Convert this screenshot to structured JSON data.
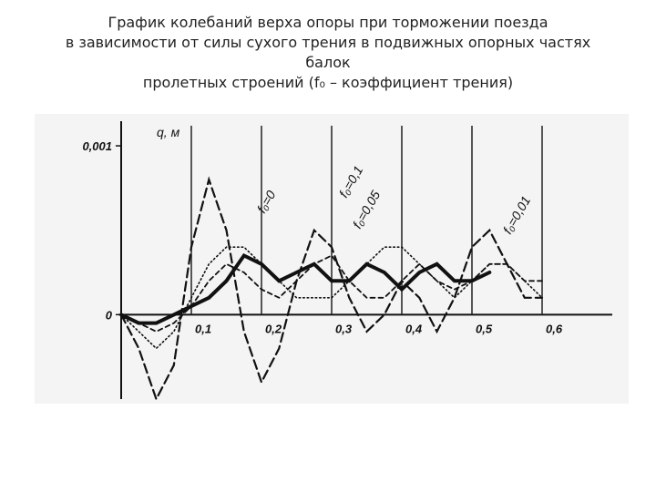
{
  "chart_data": {
    "type": "line",
    "title_lines": [
      "График колебаний верха опоры при торможении поезда",
      "в зависимости от силы сухого трения в подвижных опорных частях",
      "балок",
      "пролетных строений (f₀ – коэффициент трения)"
    ],
    "y_label": "q, м",
    "x": [
      0,
      0.025,
      0.05,
      0.075,
      0.1,
      0.125,
      0.15,
      0.175,
      0.2,
      0.225,
      0.25,
      0.275,
      0.3,
      0.325,
      0.35,
      0.375,
      0.4,
      0.425,
      0.45,
      0.475,
      0.5,
      0.525,
      0.55,
      0.575,
      0.6
    ],
    "series": [
      {
        "name": "f₀=0",
        "color": "#111111",
        "style": "dashed",
        "values": [
          0,
          -0.0002,
          -0.0005,
          -0.0003,
          0.0004,
          0.0008,
          0.0005,
          -0.0001,
          -0.0004,
          -0.0002,
          0.0002,
          0.0005,
          0.0004,
          0.0001,
          -0.0001,
          0,
          0.0002,
          0.0001,
          -0.0001,
          0.0001,
          0.0004,
          0.0005,
          0.0003,
          0.0001,
          0.0001
        ]
      },
      {
        "name": "f₀=0,1",
        "color": "#111111",
        "style": "short-dashed",
        "values": [
          0,
          -5e-05,
          -0.0001,
          -5e-05,
          5e-05,
          0.0002,
          0.0003,
          0.00025,
          0.00015,
          0.0001,
          0.0002,
          0.0003,
          0.00035,
          0.0002,
          0.0001,
          0.0001,
          0.0002,
          0.0003,
          0.0002,
          0.00015,
          0.0002,
          0.0003,
          0.0003,
          0.0002,
          0.0002
        ]
      },
      {
        "name": "f₀=0,05",
        "color": "#111111",
        "style": "dotted",
        "values": [
          0,
          -0.0001,
          -0.0002,
          -0.0001,
          0.0001,
          0.0003,
          0.0004,
          0.0004,
          0.0003,
          0.0002,
          0.0001,
          0.0001,
          0.0001,
          0.0002,
          0.0003,
          0.0004,
          0.0004,
          0.0003,
          0.0002,
          0.0001,
          0.0002,
          0.0003,
          0.0003,
          0.0002,
          0.0001
        ]
      },
      {
        "name": "f₀=0,01",
        "color": "#111111",
        "style": "thick",
        "values": [
          0,
          -5e-05,
          -5e-05,
          0,
          5e-05,
          0.0001,
          0.0002,
          0.00035,
          0.0003,
          0.0002,
          0.00025,
          0.0003,
          0.0002,
          0.0002,
          0.0003,
          0.00025,
          0.00015,
          0.00025,
          0.0003,
          0.0002,
          0.0002,
          0.00025,
          null,
          null,
          null
        ]
      }
    ],
    "xlim": [
      0,
      0.7
    ],
    "ylim": [
      -0.0005,
      0.0012
    ],
    "xticks": [
      {
        "value": 0.1,
        "label": "0,1"
      },
      {
        "value": 0.2,
        "label": "0,2"
      },
      {
        "value": 0.3,
        "label": "0,3"
      },
      {
        "value": 0.4,
        "label": "0,4"
      },
      {
        "value": 0.5,
        "label": "0,5"
      },
      {
        "value": 0.6,
        "label": "0,6"
      }
    ],
    "yticks": [
      0,
      {
        "value": 0.001,
        "label": "0,001"
      }
    ],
    "grid": true
  }
}
